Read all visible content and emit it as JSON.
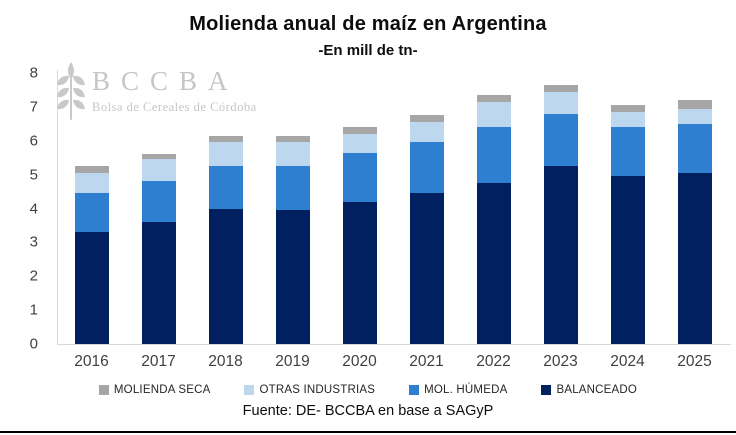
{
  "title": "Molienda anual de maíz en Argentina",
  "subtitle": "-En mill de tn-",
  "watermark": {
    "name": "BCCBA",
    "tagline": "Bolsa de Cereales de Córdoba",
    "icon": "wheat-ear-icon",
    "color": "#c6c6c6"
  },
  "footer": "Fuente: DE- BCCBA en base a SAGyP",
  "colors": {
    "balanceado": "#002060",
    "mol_humeda": "#2e7fd0",
    "otras_industrias": "#bdd7ee",
    "molienda_seca": "#a6a6a6",
    "axis_line": "#d9d9d9",
    "axis_text": "#404040",
    "bottom_border": "#000000"
  },
  "chart_data": {
    "type": "bar",
    "stacked": true,
    "title": "Molienda anual de maíz en Argentina",
    "subtitle": "-En mill de tn-",
    "xlabel": "",
    "ylabel": "",
    "ylim": [
      0,
      8
    ],
    "ytick_step": 1,
    "grid": false,
    "legend_position": "bottom",
    "legend_order_note": "legend shown left-to-right is reverse of stack order (top segment first)",
    "categories": [
      "2016",
      "2017",
      "2018",
      "2019",
      "2020",
      "2021",
      "2022",
      "2023",
      "2024",
      "2025"
    ],
    "series": [
      {
        "name": "BALANCEADO",
        "color": "#002060",
        "values": [
          3.3,
          3.6,
          4.0,
          3.95,
          4.2,
          4.45,
          4.75,
          5.25,
          4.95,
          5.05
        ]
      },
      {
        "name": "MOL. HÚMEDA",
        "color": "#2e7fd0",
        "values": [
          1.15,
          1.2,
          1.25,
          1.3,
          1.45,
          1.5,
          1.65,
          1.55,
          1.45,
          1.45
        ]
      },
      {
        "name": "OTRAS INDUSTRIAS",
        "color": "#bdd7ee",
        "values": [
          0.6,
          0.65,
          0.7,
          0.7,
          0.55,
          0.6,
          0.75,
          0.65,
          0.45,
          0.45
        ]
      },
      {
        "name": "MOLIENDA SECA",
        "color": "#a6a6a6",
        "values": [
          0.2,
          0.15,
          0.2,
          0.2,
          0.2,
          0.2,
          0.2,
          0.2,
          0.2,
          0.25
        ]
      }
    ],
    "totals": [
      5.25,
      5.6,
      6.15,
      6.15,
      6.4,
      6.75,
      7.35,
      7.65,
      7.05,
      7.2
    ]
  }
}
